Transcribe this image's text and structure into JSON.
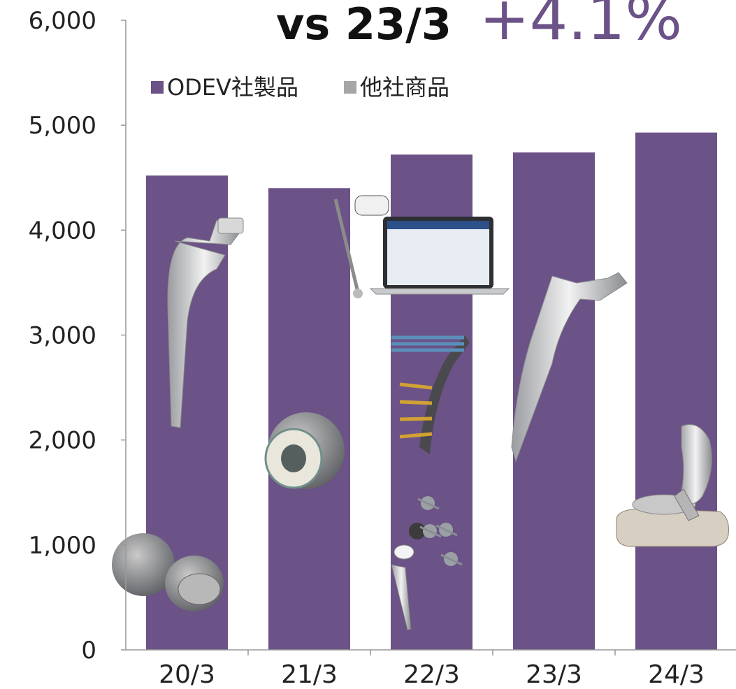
{
  "headline": {
    "prefix": "vs 23/3",
    "change": "+4.1%"
  },
  "colors": {
    "odev": "#6b5287",
    "other": "#a6a6a6",
    "accent_text": "#6b5287",
    "axis": "#999999"
  },
  "chart_data": {
    "type": "bar",
    "categories": [
      "20/3",
      "21/3",
      "22/3",
      "23/3",
      "24/3"
    ],
    "series": [
      {
        "name": "ODEV社製品",
        "values": [
          4520,
          4400,
          4720,
          4740,
          4930
        ]
      }
    ],
    "legend": [
      {
        "label": "ODEV社製品",
        "color": "#6b5287"
      },
      {
        "label": "他社商品",
        "color": "#a6a6a6"
      }
    ],
    "legend_position": "top-left",
    "y_ticks": [
      "0",
      "1,000",
      "2,000",
      "3,000",
      "4,000",
      "5,000",
      "6,000"
    ],
    "ylim": [
      0,
      6000
    ],
    "grid": false
  },
  "product_images": [
    {
      "name": "hip-stem-image",
      "category": "20/3"
    },
    {
      "name": "acetabular-cup-image",
      "category": "20/3"
    },
    {
      "name": "ceramic-head-image",
      "category": "21/3"
    },
    {
      "name": "navigation-system-image",
      "category": "22/3"
    },
    {
      "name": "bone-plate-screws-image",
      "category": "22/3"
    },
    {
      "name": "implant-set-image",
      "category": "22/3"
    },
    {
      "name": "femoral-stem-image",
      "category": "23/3"
    },
    {
      "name": "knee-implant-image",
      "category": "24/3"
    }
  ]
}
